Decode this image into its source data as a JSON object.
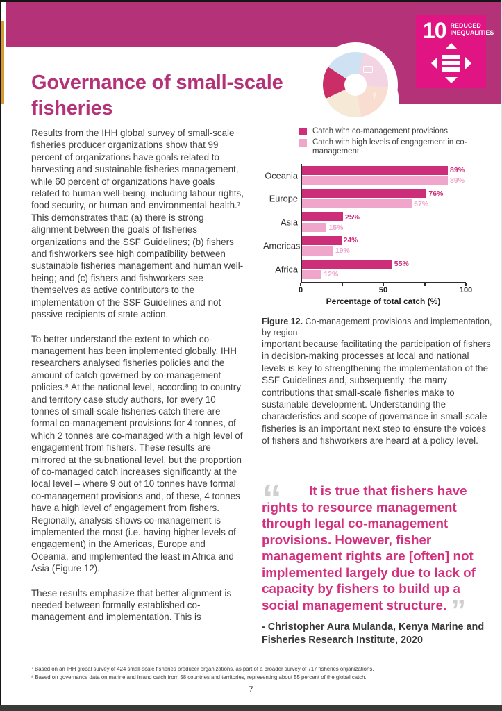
{
  "page": {
    "number": "7"
  },
  "colors": {
    "band": "#b43278",
    "sdg_badge": "#e01483",
    "title": "#b43278",
    "body_text": "#3f3f41",
    "quote_text": "#d4307e",
    "quote_marks": "#cfcfcf",
    "series1": "#cc2e7a",
    "series2": "#f0a5ca",
    "edge_yellow": "#d79a33"
  },
  "header": {
    "title": "Governance of small-scale fisheries",
    "sdg_badge": {
      "number": "10",
      "line1": "REDUCED",
      "line2": "INEQUALITIES"
    }
  },
  "left_column": {
    "paragraph1": "Results from the IHH global survey of small-scale fisheries producer organizations show that 99 percent of organizations have goals related to harvesting and sustainable fisheries management, while 60 percent of organizations have goals related to human well-being, including labour rights, food security, or human and environmental health.⁷ This demonstrates that: (a) there is strong alignment between the goals of fisheries organizations and the SSF Guidelines; (b) fishers and fishworkers see high compatibility between sustainable fisheries management and human well-being; and (c) fishers and fishworkers see themselves as active contributors to the implementation of the SSF Guidelines and not passive recipients of state action.",
    "paragraph2": "To better understand the extent to which co-management has been implemented globally, IHH researchers analysed fisheries policies and the amount of catch governed by co-management policies.⁸ At the national level, according to country and territory case study authors, for every 10 tonnes of small-scale fisheries catch there are formal co-management provisions for 4 tonnes, of which 2 tonnes are co-managed with a high level of engagement from fishers. These results are mirrored at the subnational level, but the proportion of co-managed catch increases significantly at the local level – where 9 out of 10 tonnes have formal co-management provisions and, of these, 4 tonnes have a high level of engagement from fishers. Regionally, analysis shows co-management is implemented the most (i.e. having higher levels of engagement) in the Americas, Europe and Oceania, and implemented the least in Africa and Asia (Figure 12).",
    "paragraph3": "These results emphasize that better alignment is needed between formally established co-management and implementation. This is"
  },
  "right_column": {
    "paragraph": "important because facilitating the participation of fishers in decision-making processes at local and national levels is key to strengthening the implementation of the SSF Guidelines and, subsequently, the many contributions that small-scale fisheries make to sustainable development. Understanding the characteristics and scope of governance in small-scale fisheries is an important next step to ensure the voices of fishers and fishworkers are heard at a policy level."
  },
  "chart_data": {
    "type": "bar",
    "orientation": "horizontal",
    "categories": [
      "Oceania",
      "Europe",
      "Asia",
      "Americas",
      "Africa"
    ],
    "series": [
      {
        "name": "Catch with co-management provisions",
        "color": "#cc2e7a",
        "values": [
          89,
          76,
          25,
          24,
          55
        ]
      },
      {
        "name": "Catch with high levels of engagement in co-management",
        "color": "#f0a5ca",
        "values": [
          89,
          67,
          15,
          19,
          12
        ]
      }
    ],
    "value_suffix": "%",
    "xlabel": "Percentage of total catch (%)",
    "xlim": [
      0,
      100
    ],
    "xticks": [
      {
        "v": 0,
        "label": "0"
      },
      {
        "v": 25,
        "label": ""
      },
      {
        "v": 50,
        "label": "50"
      },
      {
        "v": 75,
        "label": ""
      },
      {
        "v": 100,
        "label": "100"
      }
    ],
    "legend_position": "top",
    "grid": false
  },
  "figure": {
    "label": "Figure 12.",
    "caption": "Co-management provisions and implementation, by region"
  },
  "quote": {
    "open_mark": "“",
    "close_mark": "”",
    "text": "It is true that fishers have rights to resource management through legal co-management provisions. However, fisher management rights are [often] not implemented largely due to lack of capacity by fishers to build up a social management structure.",
    "attribution": "- Christopher Aura Mulanda, Kenya Marine and Fisheries Research Institute, 2020"
  },
  "footnotes": [
    "⁷ Based on an IHH global survey of 424 small-scale fisheries producer organizations, as part of a broader survey of 717 fisheries organizations.",
    "⁸ Based on governance data on marine and inland catch from 58 countries and territories, representing about 55 percent of the global catch."
  ]
}
